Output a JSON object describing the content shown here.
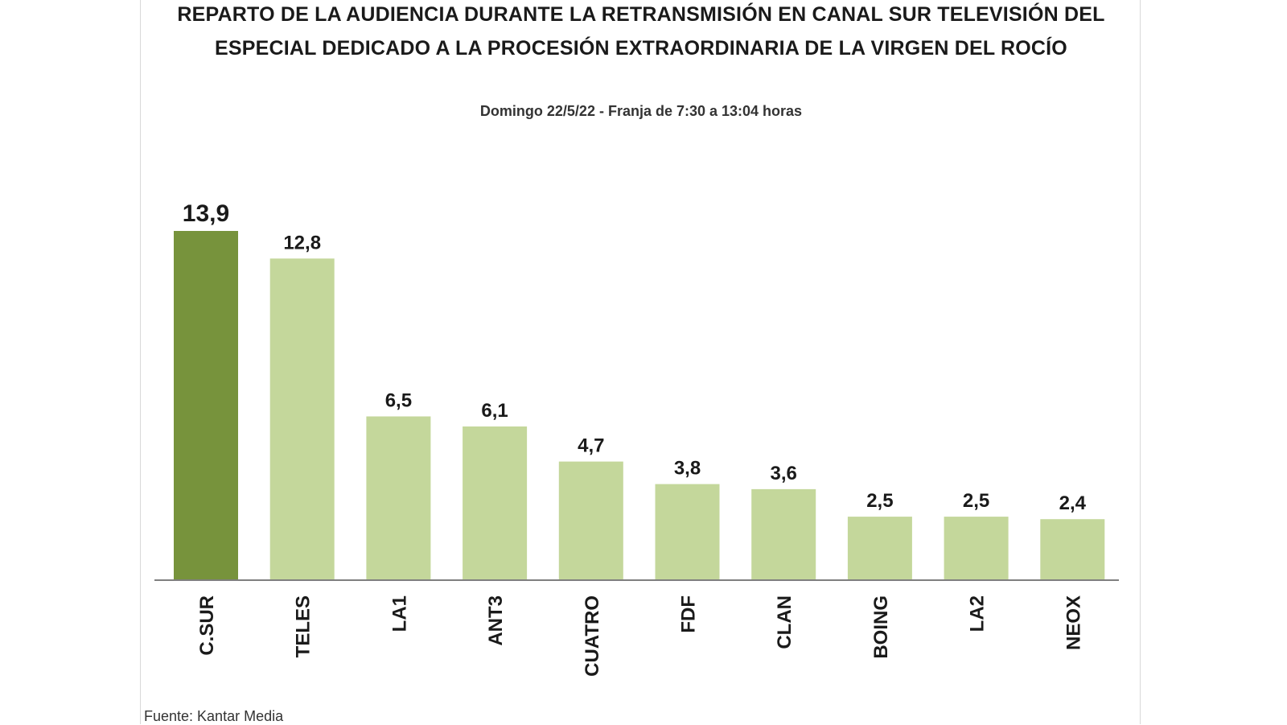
{
  "chart_data": {
    "type": "bar",
    "title_lines": [
      "REPARTO DE LA AUDIENCIA DURANTE LA RETRANSMISIÓN EN CANAL SUR TELEVISIÓN DEL",
      "ESPECIAL DEDICADO A LA PROCESIÓN EXTRAORDINARIA DE LA VIRGEN DEL ROCÍO"
    ],
    "subtitle": "Domingo 22/5/22 - Franja de 7:30 a 13:04 horas",
    "categories": [
      "C.SUR",
      "TELES",
      "LA1",
      "ANT3",
      "CUATRO",
      "FDF",
      "CLAN",
      "BOING",
      "LA2",
      "NEOX"
    ],
    "values": [
      13.9,
      12.8,
      6.5,
      6.1,
      4.7,
      3.8,
      3.6,
      2.5,
      2.5,
      2.4
    ],
    "value_labels": [
      "13,9",
      "12,8",
      "6,5",
      "6,1",
      "4,7",
      "3,8",
      "3,6",
      "2,5",
      "2,5",
      "2,4"
    ],
    "highlight_category": "C.SUR",
    "colors": {
      "highlight": "#77933c",
      "default": "#c4d79b",
      "axis": "#7f7f7f"
    },
    "ylim": [
      0,
      13.9
    ],
    "grid": false,
    "legend": "none",
    "source": "Fuente: Kantar Media"
  }
}
